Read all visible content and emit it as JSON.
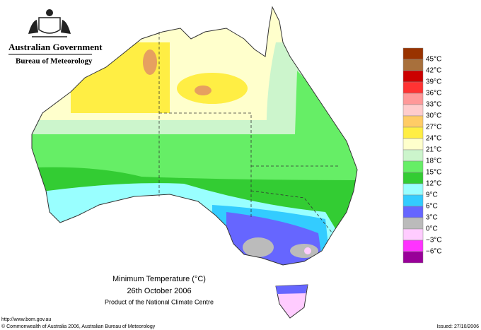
{
  "header": {
    "government": "Australian Government",
    "agency": "Bureau of Meteorology"
  },
  "map": {
    "title": "Minimum Temperature (°C)",
    "date": "26th October 2006",
    "product": "Product of the National Climate Centre"
  },
  "legend": {
    "labels": [
      "45°C",
      "42°C",
      "39°C",
      "36°C",
      "33°C",
      "30°C",
      "27°C",
      "24°C",
      "21°C",
      "18°C",
      "15°C",
      "12°C",
      "9°C",
      "6°C",
      "3°C",
      "0°C",
      "−3°C",
      "−6°C"
    ],
    "colors": [
      "#993300",
      "#a8703c",
      "#cc0000",
      "#ff3333",
      "#ff9999",
      "#ffcccc",
      "#ffcc66",
      "#ffee44",
      "#ffffcc",
      "#ccf5cc",
      "#66ee66",
      "#33cc33",
      "#99ffff",
      "#33ccff",
      "#6666ff",
      "#bbbbbb",
      "#ffccff",
      "#ff33ff",
      "#990099"
    ]
  },
  "footer": {
    "url": "http://www.bom.gov.au",
    "copyright": "© Commonwealth of Australia 2006, Australian Bureau of Meteorology",
    "issued": "Issued: 27/10/2006"
  }
}
